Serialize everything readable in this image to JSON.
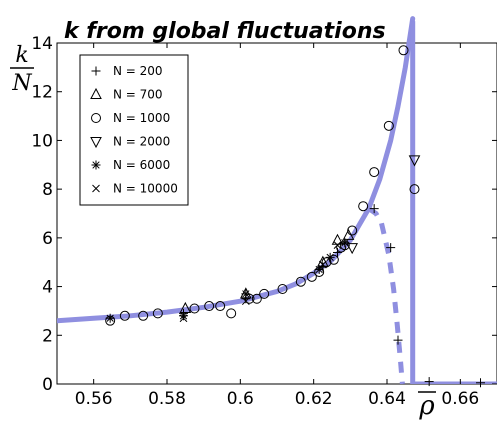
{
  "chart_data": {
    "type": "scatter",
    "title": "k  from global fluctuations",
    "ylabel_num": "k",
    "ylabel_den": "N",
    "xlabel": "ρ",
    "xlim": [
      0.55,
      0.67
    ],
    "ylim": [
      0,
      14
    ],
    "xticks": [
      0.56,
      0.58,
      0.6,
      0.62,
      0.64,
      0.66
    ],
    "xtick_labels": [
      "0.56",
      "0.58",
      "0.6",
      "0.62",
      "0.64",
      "0.66"
    ],
    "yticks": [
      0,
      2,
      4,
      6,
      8,
      10,
      12,
      14
    ],
    "ytick_labels": [
      "0",
      "2",
      "4",
      "6",
      "8",
      "10",
      "12",
      "14"
    ],
    "grid": false,
    "legend_position": "top-left",
    "curve_color": "#8f8fe0",
    "series": [
      {
        "name": "N = 200",
        "marker": "plus",
        "points": [
          [
            0.5845,
            2.9
          ],
          [
            0.6015,
            3.5
          ],
          [
            0.6225,
            4.8
          ],
          [
            0.6265,
            5.4
          ],
          [
            0.6365,
            7.2
          ],
          [
            0.641,
            5.6
          ],
          [
            0.643,
            1.8
          ],
          [
            0.6515,
            0.1
          ],
          [
            0.6655,
            0.05
          ]
        ]
      },
      {
        "name": "N = 700",
        "marker": "triangle-up",
        "points": [
          [
            0.585,
            3.1
          ],
          [
            0.6015,
            3.7
          ],
          [
            0.6225,
            5.0
          ],
          [
            0.6265,
            5.9
          ],
          [
            0.6295,
            6.1
          ]
        ]
      },
      {
        "name": "N = 1000",
        "marker": "circle",
        "points": [
          [
            0.5645,
            2.6
          ],
          [
            0.5685,
            2.8
          ],
          [
            0.5735,
            2.8
          ],
          [
            0.5775,
            2.9
          ],
          [
            0.5875,
            3.1
          ],
          [
            0.5915,
            3.2
          ],
          [
            0.5945,
            3.2
          ],
          [
            0.5975,
            2.9
          ],
          [
            0.6025,
            3.5
          ],
          [
            0.6045,
            3.5
          ],
          [
            0.6065,
            3.7
          ],
          [
            0.6115,
            3.9
          ],
          [
            0.6165,
            4.2
          ],
          [
            0.6195,
            4.4
          ],
          [
            0.6215,
            4.6
          ],
          [
            0.6235,
            5.0
          ],
          [
            0.6255,
            5.1
          ],
          [
            0.6275,
            5.6
          ],
          [
            0.6285,
            5.7
          ],
          [
            0.6305,
            6.3
          ],
          [
            0.6335,
            7.3
          ],
          [
            0.6365,
            8.7
          ],
          [
            0.6405,
            10.6
          ],
          [
            0.6445,
            13.7
          ],
          [
            0.6475,
            8.0
          ]
        ]
      },
      {
        "name": "N = 2000",
        "marker": "triangle-down",
        "points": [
          [
            0.6305,
            5.6
          ],
          [
            0.6475,
            9.2
          ]
        ]
      },
      {
        "name": "N = 6000",
        "marker": "asterisk",
        "points": [
          [
            0.5645,
            2.7
          ],
          [
            0.5845,
            2.8
          ],
          [
            0.6015,
            3.7
          ],
          [
            0.6215,
            4.7
          ],
          [
            0.6245,
            5.2
          ],
          [
            0.6285,
            5.8
          ]
        ]
      },
      {
        "name": "N = 10000",
        "marker": "cross",
        "points": [
          [
            0.5845,
            2.7
          ],
          [
            0.6015,
            3.4
          ],
          [
            0.6225,
            4.9
          ],
          [
            0.6265,
            5.7
          ]
        ]
      }
    ],
    "fit_solid": [
      [
        0.55,
        2.6
      ],
      [
        0.56,
        2.7
      ],
      [
        0.57,
        2.8
      ],
      [
        0.58,
        2.95
      ],
      [
        0.59,
        3.15
      ],
      [
        0.6,
        3.4
      ],
      [
        0.61,
        3.8
      ],
      [
        0.615,
        4.1
      ],
      [
        0.62,
        4.55
      ],
      [
        0.625,
        5.1
      ],
      [
        0.63,
        5.9
      ],
      [
        0.635,
        7.2
      ],
      [
        0.638,
        8.4
      ],
      [
        0.641,
        10.0
      ],
      [
        0.643,
        11.4
      ],
      [
        0.645,
        13.0
      ],
      [
        0.646,
        14.0
      ],
      [
        0.647,
        15.0
      ]
    ],
    "fit_solid_drop": [
      [
        0.647,
        14.9
      ],
      [
        0.647,
        0.0
      ],
      [
        0.67,
        0.0
      ]
    ],
    "fit_dashed": [
      [
        0.635,
        7.2
      ],
      [
        0.637,
        7.0
      ],
      [
        0.6385,
        6.6
      ],
      [
        0.6405,
        5.3
      ],
      [
        0.6418,
        3.9
      ],
      [
        0.6428,
        2.4
      ],
      [
        0.6437,
        0.9
      ],
      [
        0.6442,
        0.0
      ]
    ]
  },
  "legend": {
    "entries": [
      "N = 200",
      "N = 700",
      "N = 1000",
      "N = 2000",
      "N = 6000",
      "N = 10000"
    ]
  }
}
